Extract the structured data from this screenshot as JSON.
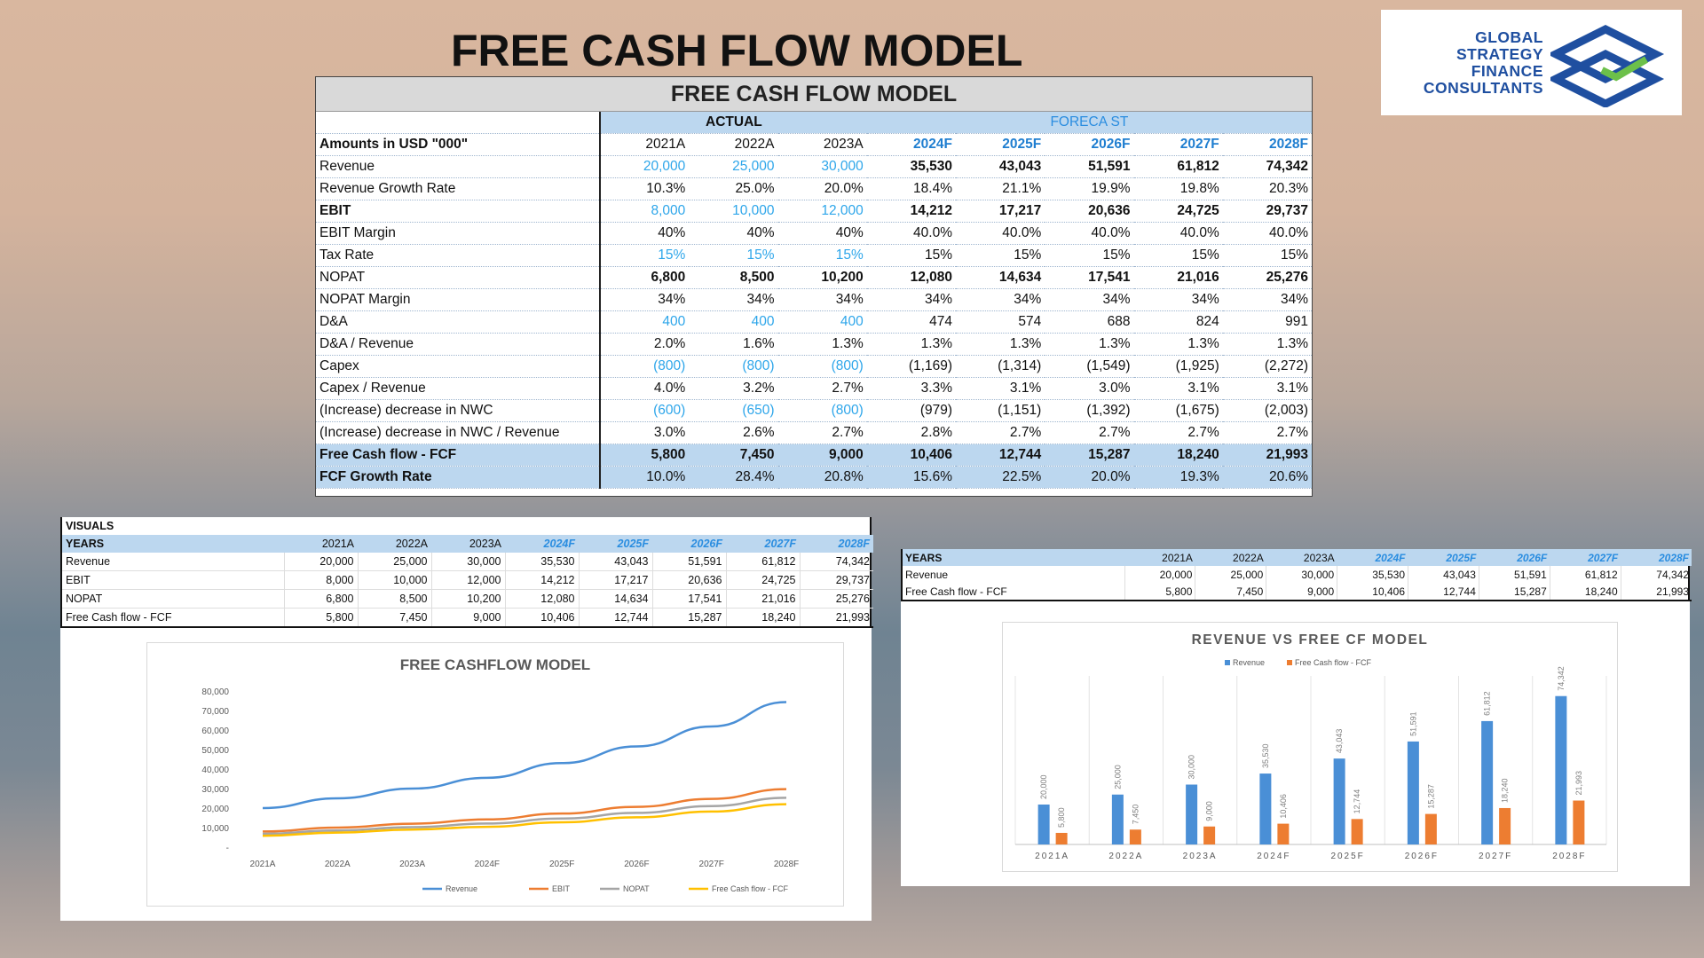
{
  "page_title": "FREE CASH FLOW MODEL",
  "logo": {
    "lines": [
      "GLOBAL",
      "STRATEGY",
      "FINANCE",
      "CONSULTANTS"
    ]
  },
  "main_table": {
    "title": "FREE CASH FLOW MODEL",
    "group_actual": "ACTUAL",
    "group_forecast": "FORECA ST",
    "row_header_label": "Amounts in USD \"000\"",
    "years": [
      "2021A",
      "2022A",
      "2023A",
      "2024F",
      "2025F",
      "2026F",
      "2027F",
      "2028F"
    ],
    "rows": [
      {
        "label": "Revenue",
        "values": [
          "20,000",
          "25,000",
          "30,000",
          "35,530",
          "43,043",
          "51,591",
          "61,812",
          "74,342"
        ]
      },
      {
        "label": "Revenue Growth Rate",
        "values": [
          "10.3%",
          "25.0%",
          "20.0%",
          "18.4%",
          "21.1%",
          "19.9%",
          "19.8%",
          "20.3%"
        ]
      },
      {
        "label": "EBIT",
        "values": [
          "8,000",
          "10,000",
          "12,000",
          "14,212",
          "17,217",
          "20,636",
          "24,725",
          "29,737"
        ]
      },
      {
        "label": "EBIT Margin",
        "values": [
          "40%",
          "40%",
          "40%",
          "40.0%",
          "40.0%",
          "40.0%",
          "40.0%",
          "40.0%"
        ]
      },
      {
        "label": "Tax Rate",
        "values": [
          "15%",
          "15%",
          "15%",
          "15%",
          "15%",
          "15%",
          "15%",
          "15%"
        ]
      },
      {
        "label": "NOPAT",
        "values": [
          "6,800",
          "8,500",
          "10,200",
          "12,080",
          "14,634",
          "17,541",
          "21,016",
          "25,276"
        ]
      },
      {
        "label": "NOPAT Margin",
        "values": [
          "34%",
          "34%",
          "34%",
          "34%",
          "34%",
          "34%",
          "34%",
          "34%"
        ]
      },
      {
        "label": "D&A",
        "values": [
          "400",
          "400",
          "400",
          "474",
          "574",
          "688",
          "824",
          "991"
        ]
      },
      {
        "label": "D&A / Revenue",
        "values": [
          "2.0%",
          "1.6%",
          "1.3%",
          "1.3%",
          "1.3%",
          "1.3%",
          "1.3%",
          "1.3%"
        ]
      },
      {
        "label": "Capex",
        "values": [
          "(800)",
          "(800)",
          "(800)",
          "(1,169)",
          "(1,314)",
          "(1,549)",
          "(1,925)",
          "(2,272)"
        ]
      },
      {
        "label": "Capex / Revenue",
        "values": [
          "4.0%",
          "3.2%",
          "2.7%",
          "3.3%",
          "3.1%",
          "3.0%",
          "3.1%",
          "3.1%"
        ]
      },
      {
        "label": "(Increase) decrease in NWC",
        "values": [
          "(600)",
          "(650)",
          "(800)",
          "(979)",
          "(1,151)",
          "(1,392)",
          "(1,675)",
          "(2,003)"
        ]
      },
      {
        "label": "(Increase) decrease in NWC / Revenue",
        "values": [
          "3.0%",
          "2.6%",
          "2.7%",
          "2.8%",
          "2.7%",
          "2.7%",
          "2.7%",
          "2.7%"
        ]
      },
      {
        "label": "Free Cash flow - FCF",
        "values": [
          "5,800",
          "7,450",
          "9,000",
          "10,406",
          "12,744",
          "15,287",
          "18,240",
          "21,993"
        ]
      },
      {
        "label": "FCF Growth Rate",
        "values": [
          "10.0%",
          "28.4%",
          "20.8%",
          "15.6%",
          "22.5%",
          "20.0%",
          "19.3%",
          "20.6%"
        ]
      }
    ]
  },
  "visuals_table": {
    "section_label": "VISUALS",
    "header_label": "YEARS",
    "years": [
      "2021A",
      "2022A",
      "2023A",
      "2024F",
      "2025F",
      "2026F",
      "2027F",
      "2028F"
    ],
    "rows": [
      {
        "label": "Revenue",
        "values": [
          "20,000",
          "25,000",
          "30,000",
          "35,530",
          "43,043",
          "51,591",
          "61,812",
          "74,342"
        ]
      },
      {
        "label": "EBIT",
        "values": [
          "8,000",
          "10,000",
          "12,000",
          "14,212",
          "17,217",
          "20,636",
          "24,725",
          "29,737"
        ]
      },
      {
        "label": "NOPAT",
        "values": [
          "6,800",
          "8,500",
          "10,200",
          "12,080",
          "14,634",
          "17,541",
          "21,016",
          "25,276"
        ]
      },
      {
        "label": "Free Cash flow - FCF",
        "values": [
          "5,800",
          "7,450",
          "9,000",
          "10,406",
          "12,744",
          "15,287",
          "18,240",
          "21,993"
        ]
      }
    ]
  },
  "right_table": {
    "header_label": "YEARS",
    "years": [
      "2021A",
      "2022A",
      "2023A",
      "2024F",
      "2025F",
      "2026F",
      "2027F",
      "2028F"
    ],
    "rows": [
      {
        "label": "Revenue",
        "values": [
          "20,000",
          "25,000",
          "30,000",
          "35,530",
          "43,043",
          "51,591",
          "61,812",
          "74,342"
        ]
      },
      {
        "label": "Free Cash flow - FCF",
        "values": [
          "5,800",
          "7,450",
          "9,000",
          "10,406",
          "12,744",
          "15,287",
          "18,240",
          "21,993"
        ]
      }
    ]
  },
  "chart_data": [
    {
      "type": "line",
      "title": "FREE CASHFLOW MODEL",
      "x": [
        "2021A",
        "2022A",
        "2023A",
        "2024F",
        "2025F",
        "2026F",
        "2027F",
        "2028F"
      ],
      "ylim": [
        0,
        80000
      ],
      "yticks": [
        "-",
        "10,000",
        "20,000",
        "30,000",
        "40,000",
        "50,000",
        "60,000",
        "70,000",
        "80,000"
      ],
      "grid": false,
      "legend_position": "bottom",
      "series": [
        {
          "name": "Revenue",
          "color": "#4a8fd6",
          "values": [
            20000,
            25000,
            30000,
            35530,
            43043,
            51591,
            61812,
            74342
          ]
        },
        {
          "name": "EBIT",
          "color": "#ed7d31",
          "values": [
            8000,
            10000,
            12000,
            14212,
            17217,
            20636,
            24725,
            29737
          ]
        },
        {
          "name": "NOPAT",
          "color": "#a5a5a5",
          "values": [
            6800,
            8500,
            10200,
            12080,
            14634,
            17541,
            21016,
            25276
          ]
        },
        {
          "name": "Free Cash flow - FCF",
          "color": "#ffc000",
          "values": [
            5800,
            7450,
            9000,
            10406,
            12744,
            15287,
            18240,
            21993
          ]
        }
      ]
    },
    {
      "type": "bar",
      "title": "REVENUE VS FREE CF MODEL",
      "categories": [
        "2021A",
        "2022A",
        "2023A",
        "2024F",
        "2025F",
        "2026F",
        "2027F",
        "2028F"
      ],
      "ylim": [
        0,
        80000
      ],
      "legend_position": "top",
      "series": [
        {
          "name": "Revenue",
          "color": "#4a8fd6",
          "values": [
            20000,
            25000,
            30000,
            35530,
            43043,
            51591,
            61812,
            74342
          ],
          "labels": [
            "20,000",
            "25,000",
            "30,000",
            "35,530",
            "43,043",
            "51,591",
            "61,812",
            "74,342"
          ]
        },
        {
          "name": "Free Cash flow - FCF",
          "color": "#ed7d31",
          "values": [
            5800,
            7450,
            9000,
            10406,
            12744,
            15287,
            18240,
            21993
          ],
          "labels": [
            "5,800",
            "7,450",
            "9,000",
            "10,406",
            "12,744",
            "15,287",
            "18,240",
            "21,993"
          ]
        }
      ]
    }
  ]
}
